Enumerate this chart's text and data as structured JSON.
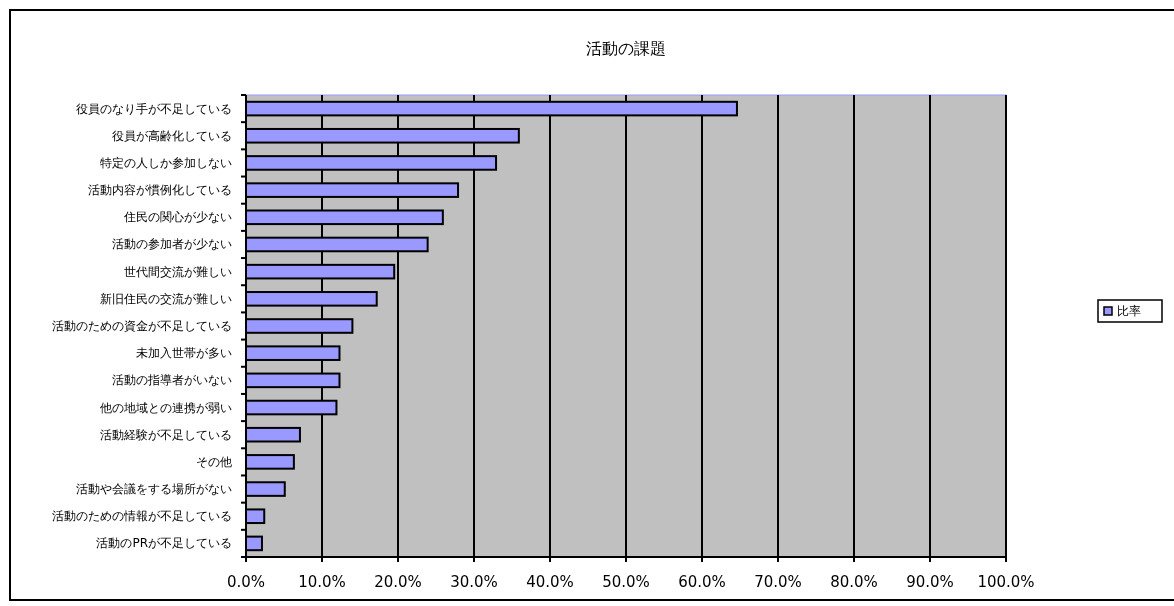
{
  "chart_data": {
    "type": "bar",
    "orientation": "horizontal",
    "title": "活動の課題",
    "categories": [
      "役員のなり手が不足している",
      "役員が高齢化している",
      "特定の人しか参加しない",
      "活動内容が慣例化している",
      "住民の関心が少ない",
      "活動の参加者が少ない",
      "世代間交流が難しい",
      "新旧住民の交流が難しい",
      "活動のための資金が不足している",
      "未加入世帯が多い",
      "活動の指導者がいない",
      "他の地域との連携が弱い",
      "活動経験が不足している",
      "その他",
      "活動や会議をする場所がない",
      "活動のための情報が不足している",
      "活動のPRが不足している"
    ],
    "series": [
      {
        "name": "比率",
        "color": "#9999ff",
        "values": [
          64.6,
          35.9,
          32.9,
          27.9,
          25.9,
          23.9,
          19.5,
          17.2,
          14.0,
          12.3,
          12.3,
          11.9,
          7.1,
          6.3,
          5.1,
          2.4,
          2.1
        ]
      }
    ],
    "xlim": [
      0,
      100
    ],
    "xticks": [
      {
        "value": 0,
        "label": "0.0%"
      },
      {
        "value": 10,
        "label": "10.0%"
      },
      {
        "value": 20,
        "label": "20.0%"
      },
      {
        "value": 30,
        "label": "30.0%"
      },
      {
        "value": 40,
        "label": "40.0%"
      },
      {
        "value": 50,
        "label": "50.0%"
      },
      {
        "value": 60,
        "label": "60.0%"
      },
      {
        "value": 70,
        "label": "70.0%"
      },
      {
        "value": 80,
        "label": "80.0%"
      },
      {
        "value": 90,
        "label": "90.0%"
      },
      {
        "value": 100,
        "label": "100.0%"
      }
    ],
    "grid": "x",
    "legend": "right"
  }
}
